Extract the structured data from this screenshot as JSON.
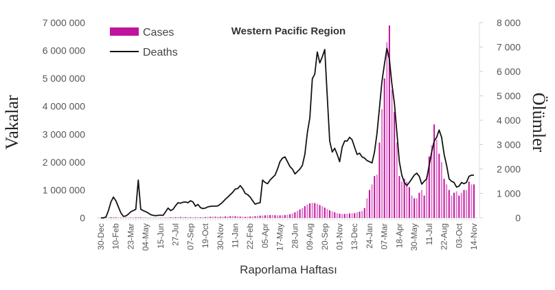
{
  "chart_data": {
    "type": "bar+line",
    "title": "Western Pacific Region",
    "xlabel": "Raporlama Haftası",
    "ylabel_left": "Vakalar",
    "ylabel_right": "Ölümler",
    "x_start": "30-Dec-2019",
    "x_interval": "weekly",
    "x_tick_labels": [
      "30-Dec",
      "10-Feb",
      "23-Mar",
      "04-May",
      "15-Jun",
      "27-Jul",
      "07-Sep",
      "19-Oct",
      "30-Nov",
      "11-Jan",
      "22-Feb",
      "05-Apr",
      "17-May",
      "28-Jun",
      "09-Aug",
      "20-Sep",
      "01-Nov",
      "13-Dec",
      "24-Jan",
      "07-Mar",
      "18-Apr",
      "30-May",
      "11-Jul",
      "22-Aug",
      "03-Oct",
      "14-Nov"
    ],
    "y_left_ticks": [
      "0",
      "1 000 000",
      "2 000 000",
      "3 000 000",
      "4 000 000",
      "5 000 000",
      "6 000 000",
      "7 000 000"
    ],
    "y_right_ticks": [
      "0",
      "1 000",
      "2 000",
      "3 000",
      "4 000",
      "5 000",
      "6 000",
      "7 000",
      "8 000"
    ],
    "ylim_left": [
      0,
      7000000
    ],
    "ylim_right": [
      0,
      8000
    ],
    "legend_position": "top-left",
    "series": [
      {
        "name": "Cases",
        "type": "bar",
        "axis": "left",
        "color": "#C0139E",
        "color_alt": "#E27CCB",
        "values": [
          100,
          500,
          3000,
          12000,
          25000,
          30000,
          20000,
          12000,
          8000,
          5000,
          8000,
          10000,
          12000,
          15000,
          20000,
          25000,
          18000,
          12000,
          8000,
          6000,
          5000,
          5000,
          6000,
          7000,
          8000,
          9000,
          12000,
          18000,
          20000,
          22000,
          25000,
          30000,
          30000,
          28000,
          25000,
          22000,
          20000,
          18000,
          18000,
          20000,
          22000,
          25000,
          30000,
          35000,
          40000,
          45000,
          40000,
          38000,
          40000,
          45000,
          50000,
          55000,
          60000,
          65000,
          60000,
          55000,
          45000,
          40000,
          35000,
          40000,
          50000,
          55000,
          60000,
          70000,
          80000,
          85000,
          90000,
          95000,
          100000,
          100000,
          95000,
          90000,
          90000,
          95000,
          100000,
          110000,
          130000,
          160000,
          200000,
          250000,
          300000,
          350000,
          420000,
          480000,
          520000,
          540000,
          530000,
          500000,
          460000,
          420000,
          370000,
          320000,
          270000,
          230000,
          200000,
          170000,
          150000,
          140000,
          140000,
          150000,
          160000,
          160000,
          170000,
          200000,
          220000,
          250000,
          350000,
          700000,
          1000000,
          1200000,
          1500000,
          1550000,
          2700000,
          3900000,
          5000000,
          6300000,
          6900000,
          4600000,
          3800000,
          2700000,
          1500000,
          1300000,
          1400000,
          1300000,
          1100000,
          800000,
          700000,
          700000,
          900000,
          1000000,
          800000,
          1500000,
          2200000,
          2600000,
          3350000,
          2800000,
          2300000,
          2000000,
          1400000,
          1200000,
          1000000,
          800000,
          900000,
          950000,
          800000,
          900000,
          1000000,
          1000000,
          1300000,
          1200000,
          1200000
        ]
      },
      {
        "name": "Deaths",
        "type": "line",
        "axis": "right",
        "color": "#111111",
        "values": [
          0,
          0,
          30,
          300,
          650,
          850,
          700,
          450,
          200,
          60,
          80,
          150,
          250,
          300,
          350,
          1550,
          350,
          300,
          250,
          200,
          130,
          100,
          90,
          100,
          110,
          100,
          250,
          400,
          300,
          350,
          500,
          620,
          600,
          640,
          650,
          620,
          700,
          650,
          480,
          550,
          420,
          380,
          400,
          450,
          470,
          480,
          480,
          490,
          560,
          650,
          760,
          850,
          950,
          1050,
          1180,
          1200,
          1320,
          1200,
          1000,
          950,
          850,
          700,
          560,
          600,
          620,
          1550,
          1450,
          1400,
          1550,
          1650,
          1750,
          2000,
          2300,
          2450,
          2500,
          2300,
          2100,
          2000,
          1800,
          1900,
          2000,
          2150,
          2600,
          3500,
          4100,
          5700,
          5900,
          6800,
          6350,
          6600,
          6900,
          5000,
          3150,
          2700,
          2850,
          2600,
          2300,
          2900,
          3150,
          3150,
          3300,
          3200,
          2900,
          2600,
          2650,
          2500,
          2450,
          2350,
          2300,
          2250,
          2700,
          3450,
          4500,
          5600,
          6300,
          6950,
          6500,
          5500,
          4700,
          3500,
          2300,
          1750,
          1450,
          1320,
          1450,
          1600,
          1750,
          1830,
          1700,
          1380,
          1500,
          1600,
          2150,
          2700,
          3150,
          3300,
          3600,
          3300,
          2600,
          2150,
          1600,
          1500,
          1450,
          1260,
          1300,
          1450,
          1400,
          1450,
          1700,
          1750,
          1750
        ]
      }
    ]
  }
}
